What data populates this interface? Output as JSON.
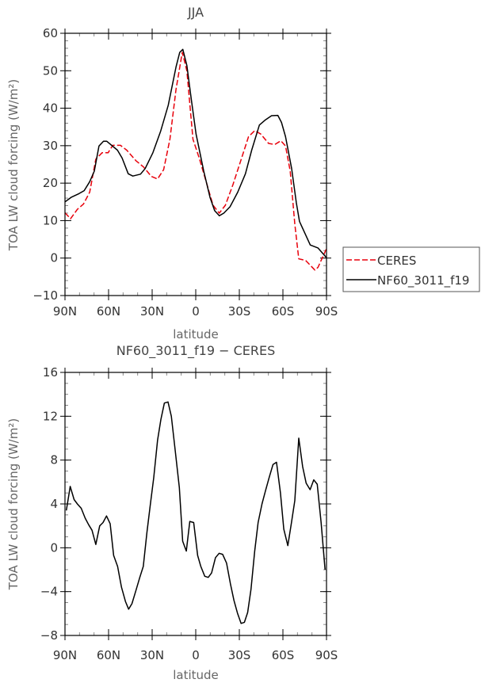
{
  "chart_data": [
    {
      "type": "line",
      "title": "JJA",
      "xlabel": "latitude",
      "ylabel": "TOA LW cloud forcing (W/m²)",
      "xlim": [
        90,
        -90
      ],
      "ylim": [
        -10,
        60
      ],
      "xticks": [
        90,
        60,
        30,
        0,
        -30,
        -60,
        -90
      ],
      "xtick_labels": [
        "90N",
        "60N",
        "30N",
        "0",
        "30S",
        "60S",
        "90S"
      ],
      "yticks": [
        -10,
        0,
        10,
        20,
        30,
        40,
        50,
        60
      ],
      "ytick_labels": [
        "−10",
        "0",
        "10",
        "20",
        "30",
        "40",
        "50",
        "60"
      ],
      "y_minor_step": 2,
      "x_minor_step": 10,
      "legend": {
        "placement": "right",
        "entries": [
          "CERES",
          "NF60_3011_f19"
        ]
      },
      "series": [
        {
          "name": "CERES",
          "color": "#e8000b",
          "dash": true,
          "x": [
            90,
            86.2,
            81.5,
            77.3,
            73,
            68.8,
            64.5,
            60.3,
            57.1,
            51.8,
            47.5,
            41.2,
            35.9,
            30.6,
            26.3,
            22.1,
            17.8,
            13.6,
            9.3,
            6.1,
            1.9,
            -2.4,
            -7.7,
            -11.9,
            -16.2,
            -20.4,
            -25.7,
            -31,
            -36.3,
            -40.6,
            -44.8,
            -50.1,
            -54.4,
            -58.6,
            -61.8,
            -65,
            -68.2,
            -70.9,
            -75.6,
            -82,
            -84.1,
            -90
          ],
          "y": [
            12.1,
            10.5,
            13,
            14.4,
            17.6,
            26.4,
            28.1,
            28.1,
            30.1,
            30.1,
            28.8,
            26,
            24.3,
            21.8,
            21.1,
            23.6,
            31.7,
            45,
            54.9,
            50,
            31.7,
            26.7,
            19.7,
            14.1,
            12,
            14.1,
            19.7,
            26,
            32.4,
            34,
            33.1,
            30.6,
            30.3,
            31.3,
            29.9,
            23.2,
            9.1,
            -0.2,
            -0.6,
            -3.2,
            -2.5,
            2.5
          ]
        },
        {
          "name": "NF60_3011_f19",
          "color": "#000000",
          "dash": false,
          "x": [
            90,
            85.8,
            80.4,
            76.8,
            73,
            69.8,
            66.6,
            63.5,
            61.3,
            53.9,
            50.7,
            46.5,
            43.3,
            38,
            34.8,
            29.5,
            24.2,
            18.9,
            13.6,
            11,
            8.9,
            6.1,
            3,
            -0.2,
            -5.5,
            -9.8,
            -13,
            -16.2,
            -19.3,
            -23.6,
            -28.9,
            -34.2,
            -38.5,
            -43.8,
            -48,
            -52.2,
            -56.5,
            -59,
            -61.8,
            -66,
            -69.2,
            -71.4,
            -78.8,
            -84.1,
            -90
          ],
          "y": [
            15,
            16.2,
            17.2,
            18,
            20.4,
            23.2,
            29.9,
            31.2,
            31.2,
            28.8,
            26.7,
            22.5,
            21.9,
            22.4,
            23.9,
            28.1,
            33.8,
            40.8,
            51,
            54.9,
            55.7,
            51.4,
            42.2,
            33.1,
            23.2,
            16.2,
            12.7,
            11.3,
            12,
            13.7,
            17.6,
            22.5,
            28.8,
            35.5,
            36.9,
            38,
            38.1,
            36.2,
            32.4,
            23.9,
            14.8,
            9.8,
            3.5,
            2.7,
            0.1
          ]
        }
      ]
    },
    {
      "type": "line",
      "title": "NF60_3011_f19 − CERES",
      "xlabel": "latitude",
      "ylabel": "TOA LW cloud forcing (W/m²)",
      "xlim": [
        90,
        -90
      ],
      "ylim": [
        -8,
        16
      ],
      "xticks": [
        90,
        60,
        30,
        0,
        -30,
        -60,
        -90
      ],
      "xtick_labels": [
        "90N",
        "60N",
        "30N",
        "0",
        "30S",
        "60S",
        "90S"
      ],
      "yticks": [
        -8,
        -4,
        0,
        4,
        8,
        12,
        16
      ],
      "ytick_labels": [
        "−8",
        "−4",
        "0",
        "4",
        "8",
        "12",
        "16"
      ],
      "y_minor_step": 1,
      "x_minor_step": 10,
      "series": [
        {
          "name": "NF60_3011_f19 - CERES",
          "color": "#000000",
          "dash": false,
          "x": [
            89.1,
            86.4,
            83.7,
            81.5,
            78.8,
            76.1,
            73.7,
            71.4,
            68.8,
            66.1,
            63.8,
            61.4,
            58.9,
            56.5,
            53.8,
            51.1,
            48.4,
            46.2,
            43.9,
            41.2,
            38.5,
            36.1,
            33.6,
            31.2,
            28.9,
            26.3,
            24,
            21.6,
            19.1,
            16.8,
            14.1,
            11.3,
            9,
            6.5,
            4.1,
            1.4,
            -1.3,
            -3.5,
            -6.2,
            -8.6,
            -10.9,
            -13.6,
            -16.1,
            -18.5,
            -21.2,
            -23.9,
            -26.3,
            -28.8,
            -31.2,
            -33.5,
            -35.7,
            -38,
            -40.6,
            -42.9,
            -45.6,
            -48,
            -50.5,
            -53.2,
            -55.6,
            -58.3,
            -60.6,
            -63.4,
            -65.9,
            -68.2,
            -70.9,
            -73.6,
            -76,
            -78.7,
            -81.2,
            -83.6,
            -86.3,
            -89
          ],
          "y": [
            3.4,
            5.6,
            4.4,
            4.0,
            3.6,
            2.7,
            2.1,
            1.6,
            0.3,
            2.0,
            2.3,
            2.9,
            2.2,
            -0.7,
            -1.7,
            -3.6,
            -4.9,
            -5.6,
            -5.1,
            -3.9,
            -2.7,
            -1.7,
            1.4,
            4.0,
            6.4,
            9.8,
            11.7,
            13.2,
            13.3,
            12.0,
            8.8,
            5.5,
            0.6,
            -0.3,
            2.4,
            2.3,
            -0.7,
            -1.7,
            -2.6,
            -2.7,
            -2.3,
            -0.9,
            -0.5,
            -0.6,
            -1.4,
            -3.3,
            -4.8,
            -6.0,
            -6.9,
            -6.8,
            -5.9,
            -3.8,
            -0.3,
            2.3,
            4.0,
            5.2,
            6.4,
            7.6,
            7.8,
            5.0,
            1.7,
            0.2,
            2.3,
            4.3,
            10.0,
            7.4,
            5.9,
            5.3,
            6.2,
            5.8,
            2.3,
            -2.0
          ]
        }
      ]
    }
  ]
}
